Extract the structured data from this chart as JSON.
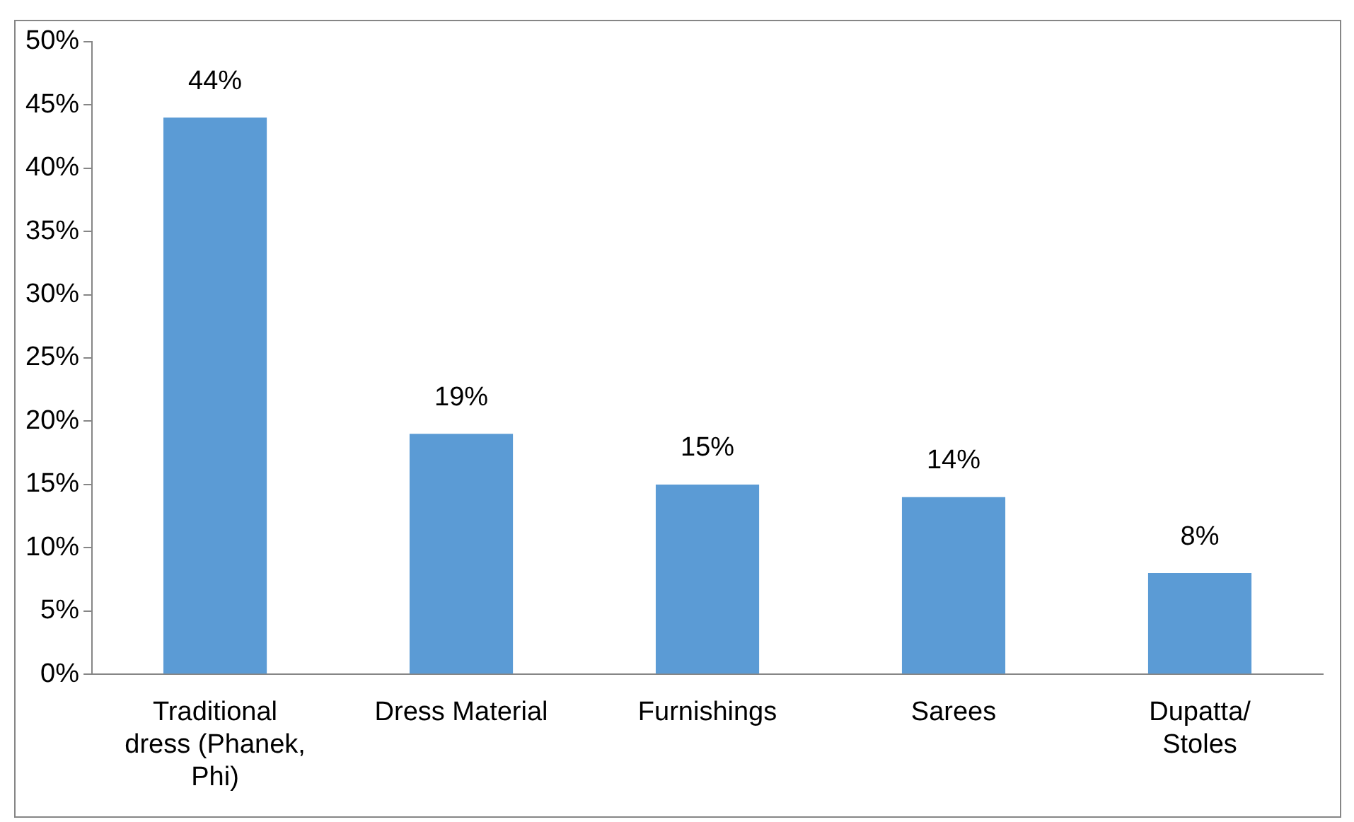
{
  "chart_data": {
    "type": "bar",
    "categories": [
      "Traditional dress (Phanek, Phi)",
      "Dress Material",
      "Furnishings",
      "Sarees",
      "Dupatta/ Stoles"
    ],
    "values": [
      44,
      19,
      15,
      14,
      8
    ],
    "color": "#5b9bd5",
    "value_labels": [
      "44%",
      "19%",
      "15%",
      "14%",
      "8%"
    ],
    "ylim": [
      0,
      50
    ],
    "yticks": [
      {
        "value": 0,
        "label": "0%"
      },
      {
        "value": 5,
        "label": "5%"
      },
      {
        "value": 10,
        "label": "10%"
      },
      {
        "value": 15,
        "label": "15%"
      },
      {
        "value": 20,
        "label": "20%"
      },
      {
        "value": 25,
        "label": "25%"
      },
      {
        "value": 30,
        "label": "30%"
      },
      {
        "value": 35,
        "label": "35%"
      },
      {
        "value": 40,
        "label": "40%"
      },
      {
        "value": 45,
        "label": "45%"
      },
      {
        "value": 50,
        "label": "50%"
      }
    ],
    "grid": false,
    "legend": false
  }
}
